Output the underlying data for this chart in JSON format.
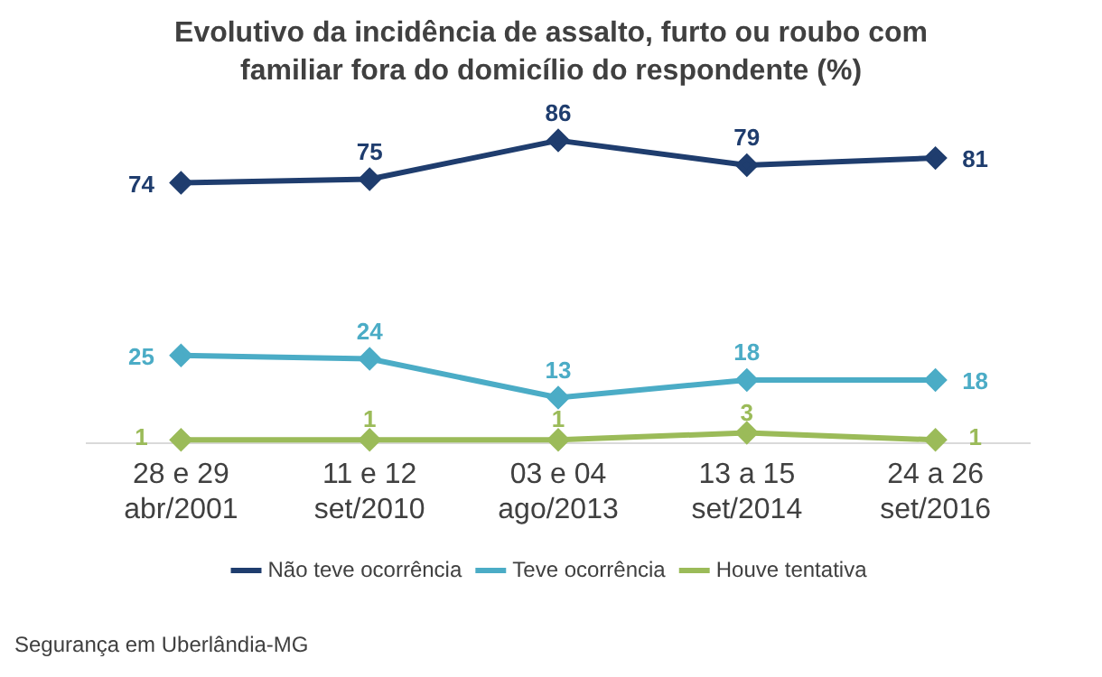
{
  "chart_data": {
    "type": "line",
    "title": "Evolutivo da incidência de assalto, furto ou roubo com familiar fora do domicílio do respondente (%)",
    "categories": [
      "28 e 29\nabr/2001",
      "11 e 12\nset/2010",
      "03 e 04\nago/2013",
      "13 a 15\nset/2014",
      "24 a 26\nset/2016"
    ],
    "series": [
      {
        "name": "Não teve ocorrência",
        "color": "#1f3d6e",
        "values": [
          74,
          75,
          86,
          79,
          81
        ]
      },
      {
        "name": "Teve ocorrência",
        "color": "#4bacc6",
        "values": [
          25,
          24,
          13,
          18,
          18
        ]
      },
      {
        "name": "Houve tentativa",
        "color": "#9bbb59",
        "values": [
          1,
          1,
          1,
          3,
          1
        ]
      }
    ],
    "data_labels": true,
    "legend": "bottom",
    "grid": false,
    "marker": "diamond",
    "line_style": "solid",
    "tick_labels": "x",
    "annotations": [
      "Segurança em Uberlândia-MG"
    ]
  }
}
